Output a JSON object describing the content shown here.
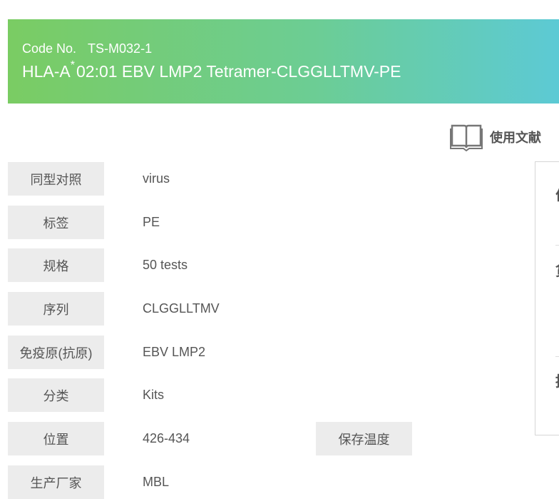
{
  "header": {
    "code_label": "Code No.",
    "code": "TS-M032-1",
    "title_pre": "HLA-A",
    "title_star": "*",
    "title_post": "02:01 EBV LMP2 Tetramer-CLGGLLTMV-PE"
  },
  "literature": {
    "label": "使用文献",
    "icon": "open-book-icon"
  },
  "specs": [
    {
      "label": "同型对照",
      "value": "virus"
    },
    {
      "label": "标签",
      "value": "PE"
    },
    {
      "label": "规格",
      "value": "50 tests"
    },
    {
      "label": "序列",
      "value": "CLGGLLTMV"
    },
    {
      "label": "免疫原(抗原)",
      "value": "EBV LMP2"
    },
    {
      "label": "分类",
      "value": "Kits"
    },
    {
      "label": "位置",
      "value": "426-434"
    },
    {
      "label": "生产厂家",
      "value": "MBL"
    }
  ],
  "storage": {
    "label": "保存温度"
  },
  "side_panel": {
    "items": [
      "价",
      "货",
      "推"
    ]
  },
  "colors": {
    "banner_start": "#7acc63",
    "banner_end": "#5ccad6",
    "label_bg": "#ececec"
  }
}
